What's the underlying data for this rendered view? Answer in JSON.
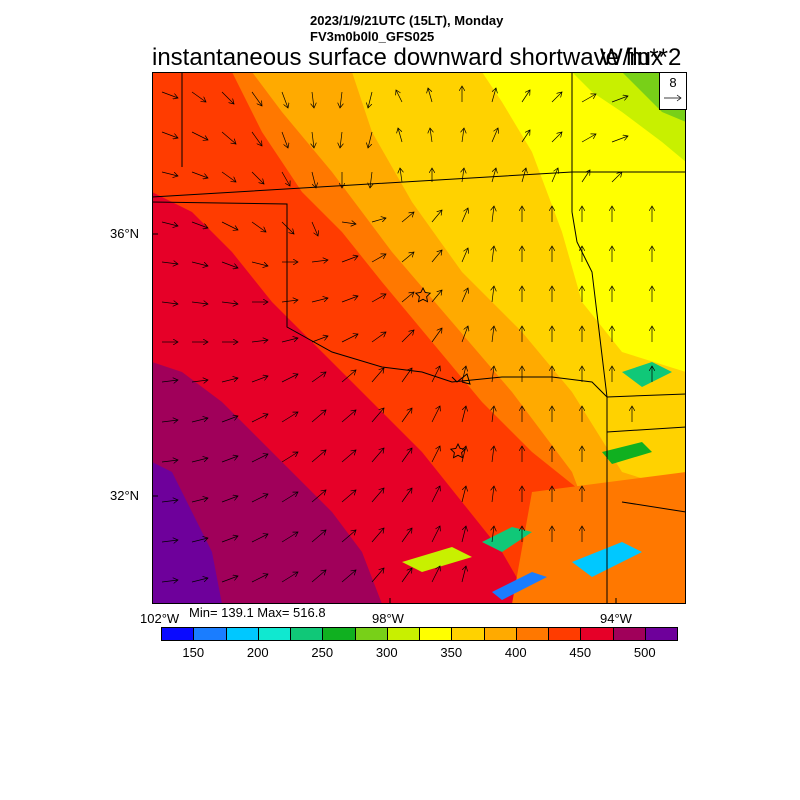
{
  "header": {
    "line1": "2023/1/9/21UTC (15LT), Monday",
    "line2": "FV3m0b0l0_GFS025",
    "title": "instantaneous surface downward shortwave flux",
    "units": "W/m**2"
  },
  "map": {
    "lat_labels": [
      "36°N",
      "32°N"
    ],
    "lon_labels": [
      "102°W",
      "98°W",
      "94°W"
    ],
    "reference_vector": {
      "value": "8"
    },
    "markers": [
      "star-marker",
      "star-marker"
    ]
  },
  "stats": {
    "text": "Min= 139.1 Max= 516.8"
  },
  "colorbar": {
    "colors": [
      "#0a0aff",
      "#1a7dff",
      "#00c8ff",
      "#10e8d0",
      "#10c878",
      "#10b020",
      "#78d018",
      "#c8f000",
      "#ffff00",
      "#ffd200",
      "#ffaa00",
      "#ff7800",
      "#ff3c00",
      "#e60028",
      "#a0005a",
      "#6e009b"
    ],
    "labels": [
      "150",
      "200",
      "250",
      "300",
      "350",
      "400",
      "450",
      "500"
    ]
  }
}
